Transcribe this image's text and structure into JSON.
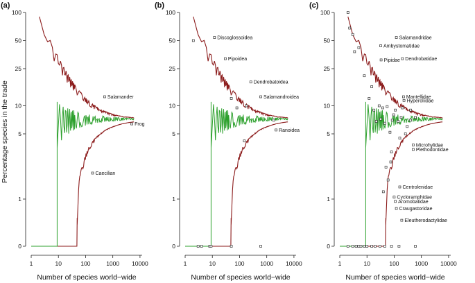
{
  "figure": {
    "ylabel": "Percentage species in the trade",
    "xlabel": "Number of species world−wide",
    "panel_tags": [
      "(a)",
      "(b)",
      "(c)"
    ]
  },
  "colors": {
    "upper_lower_bound": "#8b1a1a",
    "expected_mean": "#2ca02c",
    "points": "#333333"
  },
  "chart_data": [
    {
      "type": "scatter",
      "panel": "(a)",
      "xlabel": "Number of species world−wide",
      "ylabel": "Percentage species in the trade",
      "x_scale": "log",
      "y_scale": "log",
      "xlim": [
        1,
        15000
      ],
      "ylim": [
        0,
        100
      ],
      "x_ticks": [
        "1",
        "10",
        "100",
        "1000",
        "10000"
      ],
      "y_ticks": [
        "0",
        "1",
        "5",
        "10",
        "25",
        "50",
        "100"
      ],
      "series": [
        {
          "name": "Salamander",
          "points": [
            {
              "x": 500,
              "y": 12.5
            }
          ]
        },
        {
          "name": "Frog",
          "points": [
            {
              "x": 5000,
              "y": 6.4
            }
          ]
        },
        {
          "name": "Caecilian",
          "points": [
            {
              "x": 180,
              "y": 1.9
            }
          ]
        }
      ]
    },
    {
      "type": "scatter",
      "panel": "(b)",
      "xlabel": "Number of species world−wide",
      "ylabel": "Percentage species in the trade",
      "x_scale": "log",
      "y_scale": "log",
      "xlim": [
        1,
        15000
      ],
      "ylim": [
        0,
        100
      ],
      "x_ticks": [
        "1",
        "10",
        "100",
        "1000",
        "10000"
      ],
      "y_ticks": [
        "0",
        "1",
        "5",
        "10",
        "25",
        "50",
        "100"
      ],
      "series": [
        {
          "name": "Discoglossoidea",
          "points": [
            {
              "x": 12,
              "y": 54
            }
          ]
        },
        {
          "name": "Pipoidea",
          "points": [
            {
              "x": 30,
              "y": 32
            }
          ]
        },
        {
          "name": "Dendrobatoidea",
          "points": [
            {
              "x": 260,
              "y": 18
            }
          ]
        },
        {
          "name": "Salamandroidea",
          "points": [
            {
              "x": 600,
              "y": 12.5
            }
          ]
        },
        {
          "name": "Ranoidea",
          "points": [
            {
              "x": 2200,
              "y": 5.5
            }
          ]
        },
        {
          "name": "unlabeled",
          "points": [
            {
              "x": 2,
              "y": 50
            },
            {
              "x": 50,
              "y": 12
            },
            {
              "x": 80,
              "y": 9.5
            },
            {
              "x": 180,
              "y": 10
            },
            {
              "x": 1800,
              "y": 7
            },
            {
              "x": 150,
              "y": 4.2
            },
            {
              "x": 3,
              "y": 0
            },
            {
              "x": 4,
              "y": 0
            },
            {
              "x": 8,
              "y": 0
            },
            {
              "x": 9,
              "y": 0
            },
            {
              "x": 50,
              "y": 0
            },
            {
              "x": 600,
              "y": 0
            }
          ]
        }
      ]
    },
    {
      "type": "scatter",
      "panel": "(c)",
      "xlabel": "Number of species world−wide",
      "ylabel": "Percentage species in the trade",
      "x_scale": "log",
      "y_scale": "log",
      "xlim": [
        1,
        15000
      ],
      "ylim": [
        0,
        100
      ],
      "x_ticks": [
        "1",
        "10",
        "100",
        "1000",
        "10000"
      ],
      "y_ticks": [
        "0",
        "1",
        "5",
        "10",
        "25",
        "50",
        "100"
      ],
      "series": [
        {
          "name": "Salamandridae",
          "points": [
            {
              "x": 120,
              "y": 54
            }
          ]
        },
        {
          "name": "Ambystomatidae",
          "points": [
            {
              "x": 32,
              "y": 44
            }
          ]
        },
        {
          "name": "Pipidae",
          "points": [
            {
              "x": 33,
              "y": 31
            }
          ]
        },
        {
          "name": "Dendrobatidae",
          "points": [
            {
              "x": 200,
              "y": 32
            }
          ]
        },
        {
          "name": "Mantellidae",
          "points": [
            {
              "x": 220,
              "y": 12.5
            }
          ]
        },
        {
          "name": "Hyperoliidae",
          "points": [
            {
              "x": 230,
              "y": 11.4
            }
          ]
        },
        {
          "name": "Microhylidae",
          "points": [
            {
              "x": 500,
              "y": 3.8
            }
          ]
        },
        {
          "name": "Plethodontidae",
          "points": [
            {
              "x": 500,
              "y": 3.4
            }
          ]
        },
        {
          "name": "Centrolenidae",
          "points": [
            {
              "x": 160,
              "y": 1.35
            }
          ]
        },
        {
          "name": "Cycloramphidae",
          "points": [
            {
              "x": 100,
              "y": 1.05
            }
          ]
        },
        {
          "name": "Aromobatidae",
          "points": [
            {
              "x": 110,
              "y": 0.95
            }
          ]
        },
        {
          "name": "Craugastoridae",
          "points": [
            {
              "x": 120,
              "y": 0.8
            }
          ]
        },
        {
          "name": "Eleutherodactylidae",
          "points": [
            {
              "x": 190,
              "y": 0.55
            }
          ]
        },
        {
          "name": "unlabeled",
          "points": [
            {
              "x": 2,
              "y": 100
            },
            {
              "x": 2.3,
              "y": 68
            },
            {
              "x": 3,
              "y": 58
            },
            {
              "x": 3.5,
              "y": 38
            },
            {
              "x": 5,
              "y": 42
            },
            {
              "x": 8,
              "y": 21
            },
            {
              "x": 12,
              "y": 12
            },
            {
              "x": 15,
              "y": 16
            },
            {
              "x": 18,
              "y": 9
            },
            {
              "x": 22,
              "y": 6.8
            },
            {
              "x": 28,
              "y": 10
            },
            {
              "x": 32,
              "y": 7.2
            },
            {
              "x": 38,
              "y": 9.5
            },
            {
              "x": 45,
              "y": 6.5
            },
            {
              "x": 55,
              "y": 9.8
            },
            {
              "x": 70,
              "y": 5.2
            },
            {
              "x": 85,
              "y": 7
            },
            {
              "x": 95,
              "y": 8
            },
            {
              "x": 110,
              "y": 9
            },
            {
              "x": 140,
              "y": 6.8
            },
            {
              "x": 160,
              "y": 4.5
            },
            {
              "x": 180,
              "y": 7.5
            },
            {
              "x": 200,
              "y": 9.5
            },
            {
              "x": 260,
              "y": 5
            },
            {
              "x": 300,
              "y": 6
            },
            {
              "x": 400,
              "y": 7
            },
            {
              "x": 400,
              "y": 9
            },
            {
              "x": 600,
              "y": 7.5
            },
            {
              "x": 50,
              "y": 2.2
            },
            {
              "x": 60,
              "y": 1.6
            },
            {
              "x": 75,
              "y": 2.5
            },
            {
              "x": 80,
              "y": 3.2
            },
            {
              "x": 40,
              "y": 1.2
            },
            {
              "x": 2,
              "y": 0
            },
            {
              "x": 3,
              "y": 0
            },
            {
              "x": 4,
              "y": 0
            },
            {
              "x": 5,
              "y": 0
            },
            {
              "x": 6,
              "y": 0
            },
            {
              "x": 8,
              "y": 0
            },
            {
              "x": 10,
              "y": 0
            },
            {
              "x": 15,
              "y": 0
            },
            {
              "x": 20,
              "y": 0
            },
            {
              "x": 30,
              "y": 0
            },
            {
              "x": 45,
              "y": 0
            },
            {
              "x": 80,
              "y": 0
            },
            {
              "x": 150,
              "y": 0
            },
            {
              "x": 600,
              "y": 0
            }
          ]
        }
      ]
    }
  ]
}
